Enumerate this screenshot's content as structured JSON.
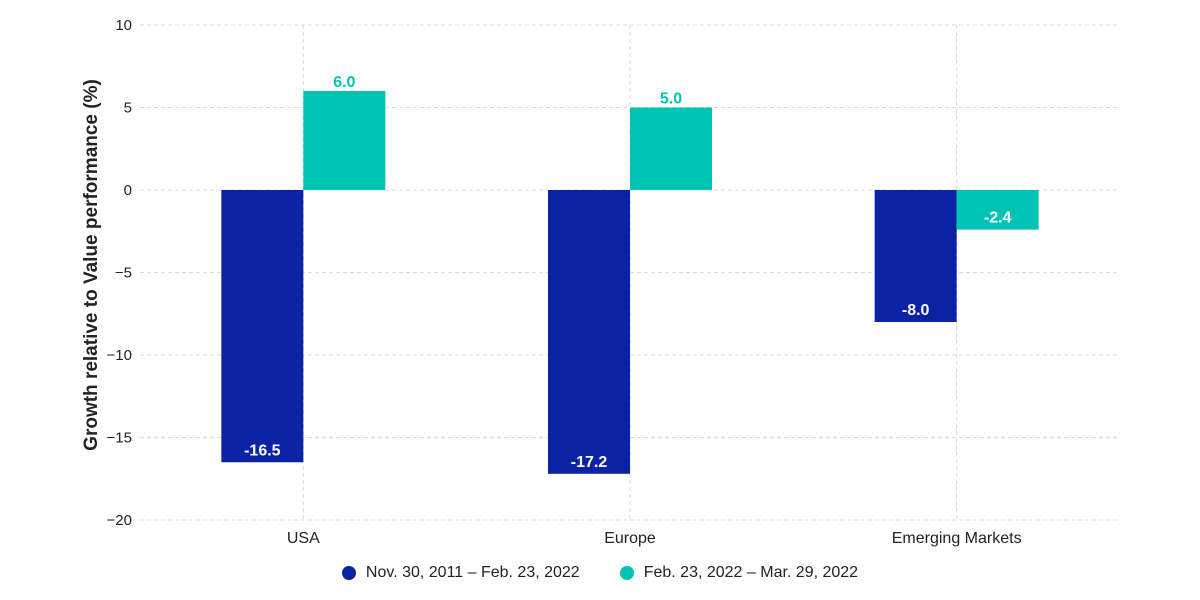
{
  "chart_data": {
    "type": "bar",
    "title": "",
    "xlabel": "",
    "ylabel": "Growth relative to Value performance (%)",
    "categories": [
      "USA",
      "Europe",
      "Emerging Markets"
    ],
    "series": [
      {
        "name": "Nov. 30, 2011 – Feb. 23, 2022",
        "color": "#0a23a5",
        "values": [
          -16.5,
          -17.2,
          -8.0
        ],
        "labels": [
          "-16.5",
          "-17.2",
          "-8.0"
        ]
      },
      {
        "name": "Feb. 23, 2022 – Mar. 29, 2022",
        "color": "#00c4b3",
        "values": [
          6.0,
          5.0,
          -2.4
        ],
        "labels": [
          "6.0",
          "5.0",
          "-2.4"
        ]
      }
    ],
    "ylim": [
      -20,
      10
    ],
    "yticks": [
      10,
      5,
      0,
      -5,
      -10,
      -15,
      -20
    ],
    "ytick_labels": [
      "10",
      "5",
      "0",
      "−5",
      "−10",
      "−15",
      "−20"
    ],
    "grid": true,
    "legend_position": "bottom"
  }
}
